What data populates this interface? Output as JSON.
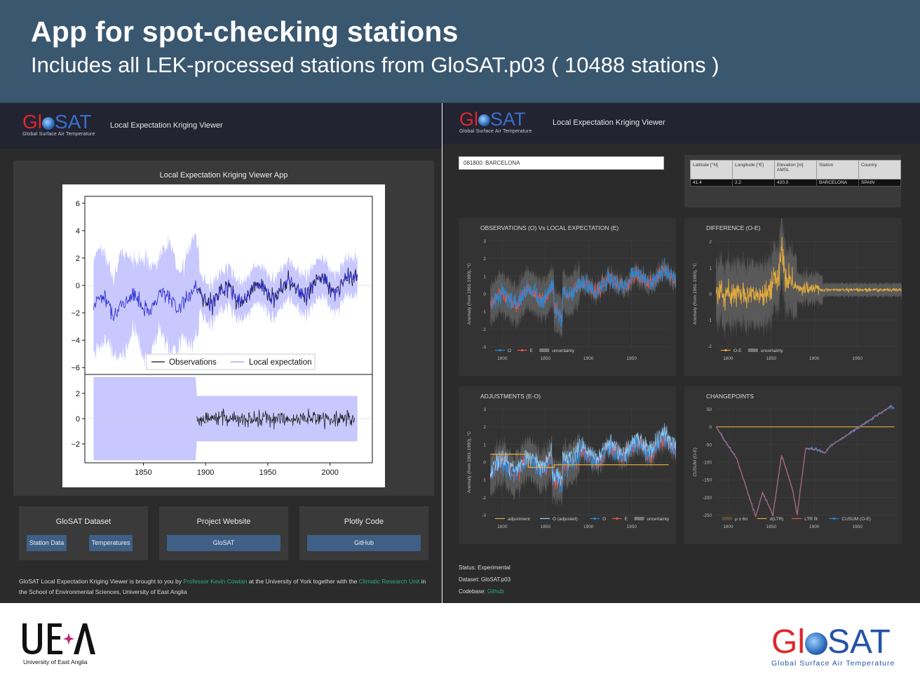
{
  "banner": {
    "title": "App for spot-checking stations",
    "subtitle": "Includes all LEK-processed stations from GloSAT.p03 ( 10488 stations )"
  },
  "logo": {
    "gl": "Gl",
    "sat": "SAT",
    "tagline": "Global Surface Air Temperature"
  },
  "left_app": {
    "nav_title": "Local Expectation Kriging Viewer",
    "card_title": "Local Expectation Kriging Viewer App",
    "legend": [
      "Observations",
      "Local expectation"
    ],
    "links": [
      {
        "title": "GloSAT Dataset",
        "buttons": [
          "Station Data",
          "Temperatures"
        ]
      },
      {
        "title": "Project Website",
        "buttons": [
          "GloSAT"
        ]
      },
      {
        "title": "Plotly Code",
        "buttons": [
          "GitHub"
        ]
      }
    ],
    "footer": {
      "t1": "GloSAT Local Expectation Kriging Viewer is brought to you by ",
      "l1": "Professor Kevin Cowtan",
      "t2": " at the University of York together with the ",
      "l2": "Climatic Research Unit",
      "t3": " in the School of Environmental Sciences, University of East Anglia"
    }
  },
  "right_app": {
    "nav_title": "Local Expectation Kriging Viewer",
    "station_value": "081800: BARCELONA",
    "table": {
      "headers": [
        "Latitude [°N]",
        "Longitude [°E]",
        "Elevation [m] AMSL",
        "Station",
        "Country"
      ],
      "row": [
        "41.4",
        "2.2",
        "420.0",
        "BARCELONA",
        "SPAIN"
      ]
    },
    "plots": {
      "obs": {
        "title": "OBSERVATIONS (O) Vs LOCAL EXPECTATION (E)",
        "ylabel": "Anomaly (from 1961-1990), °C",
        "legend": [
          "O",
          "E",
          "uncertainty"
        ]
      },
      "diff": {
        "title": "DIFFERENCE (O-E)",
        "ylabel": "Anomaly (from 1961-1990), °C",
        "legend": [
          "O-E",
          "uncertainty"
        ]
      },
      "adj": {
        "title": "ADJUSTMENTS (E-O)",
        "ylabel": "Anomaly (from 1961-1990), °C",
        "legend": [
          "adjustment",
          "O (adjusted)",
          "O",
          "E",
          "uncertainty"
        ]
      },
      "cp": {
        "title": "CHANGEPOINTS",
        "ylabel": "CUSUM (O-E)",
        "legend": [
          "μ ± 6σ",
          "d(LTR)",
          "LTR fit",
          "CUSUM (O-E)"
        ]
      }
    },
    "status": {
      "status": "Status: Experimental",
      "dataset": "Dataset: GloSAT.p03",
      "codebase_label": "Codebase: ",
      "codebase_link": "Github"
    }
  },
  "footer_logos": {
    "uea_text": "University of East Anglia",
    "glosat_tag": "Global Surface Air Temperature"
  },
  "chart_data": [
    {
      "type": "line",
      "title": "",
      "series": [
        {
          "name": "Observations"
        },
        {
          "name": "Local expectation"
        }
      ],
      "panels": [
        {
          "ylim": [
            -6.5,
            6.5
          ],
          "yticks": [
            -6,
            -4,
            -2,
            0,
            2,
            4,
            6
          ]
        },
        {
          "ylim": [
            -3.5,
            3.5
          ],
          "yticks": [
            -2,
            0,
            2
          ]
        }
      ],
      "xticks": [
        1850,
        1900,
        1950,
        2000
      ],
      "xlim": [
        1803,
        2034
      ]
    },
    {
      "type": "line",
      "title": "OBSERVATIONS (O) Vs LOCAL EXPECTATION (E)",
      "ylabel": "Anomaly (from 1961-1990), °C",
      "xticks": [
        1800,
        1850,
        1900,
        1950
      ],
      "yticks": [
        -3,
        -2,
        -1,
        0,
        1,
        2,
        3
      ],
      "series": [
        {
          "name": "O"
        },
        {
          "name": "E"
        },
        {
          "name": "uncertainty"
        }
      ]
    },
    {
      "type": "line",
      "title": "DIFFERENCE (O-E)",
      "ylabel": "Anomaly (from 1961-1990), °C",
      "xticks": [
        1800,
        1850,
        1900,
        1950
      ],
      "yticks": [
        -2,
        -1,
        0,
        1,
        2
      ],
      "series": [
        {
          "name": "O-E"
        },
        {
          "name": "uncertainty"
        }
      ]
    },
    {
      "type": "line",
      "title": "ADJUSTMENTS (E-O)",
      "ylabel": "Anomaly (from 1961-1990), °C",
      "xticks": [
        1800,
        1850,
        1900,
        1950
      ],
      "yticks": [
        -3,
        -2,
        -1,
        0,
        1,
        2,
        3
      ],
      "series": [
        {
          "name": "adjustment"
        },
        {
          "name": "O (adjusted)"
        },
        {
          "name": "O"
        },
        {
          "name": "E"
        },
        {
          "name": "uncertainty"
        }
      ]
    },
    {
      "type": "line",
      "title": "CHANGEPOINTS",
      "ylabel": "CUSUM (O-E)",
      "xticks": [
        1800,
        1850,
        1900,
        1950
      ],
      "yticks": [
        -250,
        -200,
        -150,
        -100,
        -50,
        0,
        50
      ],
      "series": [
        {
          "name": "μ ± 6σ"
        },
        {
          "name": "d(LTR)"
        },
        {
          "name": "LTR fit"
        },
        {
          "name": "CUSUM (O-E)"
        }
      ]
    }
  ]
}
